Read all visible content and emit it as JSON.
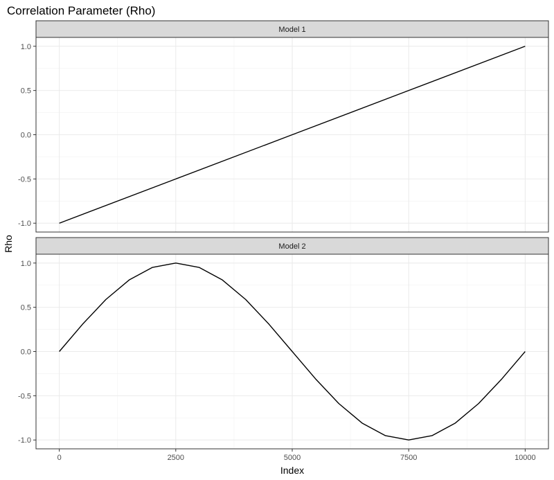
{
  "chart_data": {
    "type": "line",
    "title": "Correlation Parameter (Rho)",
    "xlabel": "Index",
    "ylabel": "Rho",
    "xlim": [
      -500,
      10500
    ],
    "ylim": [
      -1.1,
      1.1
    ],
    "x_ticks": [
      0,
      2500,
      5000,
      7500,
      10000
    ],
    "x_tick_labels": [
      "0",
      "2500",
      "5000",
      "7500",
      "10000"
    ],
    "y_ticks": [
      -1.0,
      -0.5,
      0.0,
      0.5,
      1.0
    ],
    "y_tick_labels": [
      "-1.0",
      "-0.5",
      "0.0",
      "0.5",
      "1.0"
    ],
    "grid": true,
    "line_color": "#000000",
    "panels": [
      {
        "strip_label": "Model 1",
        "x": [
          0,
          2500,
          5000,
          7500,
          10000
        ],
        "y": [
          -1.0,
          -0.5,
          0.0,
          0.5,
          1.0
        ]
      },
      {
        "strip_label": "Model 2",
        "x": [
          0,
          500,
          1000,
          1500,
          2000,
          2500,
          3000,
          3500,
          4000,
          4500,
          5000,
          5500,
          6000,
          6500,
          7000,
          7500,
          8000,
          8500,
          9000,
          9500,
          10000
        ],
        "y": [
          0.0,
          0.309,
          0.588,
          0.809,
          0.951,
          1.0,
          0.951,
          0.809,
          0.588,
          0.309,
          0.0,
          -0.309,
          -0.588,
          -0.809,
          -0.951,
          -1.0,
          -0.951,
          -0.809,
          -0.588,
          -0.309,
          0.0
        ]
      }
    ]
  }
}
